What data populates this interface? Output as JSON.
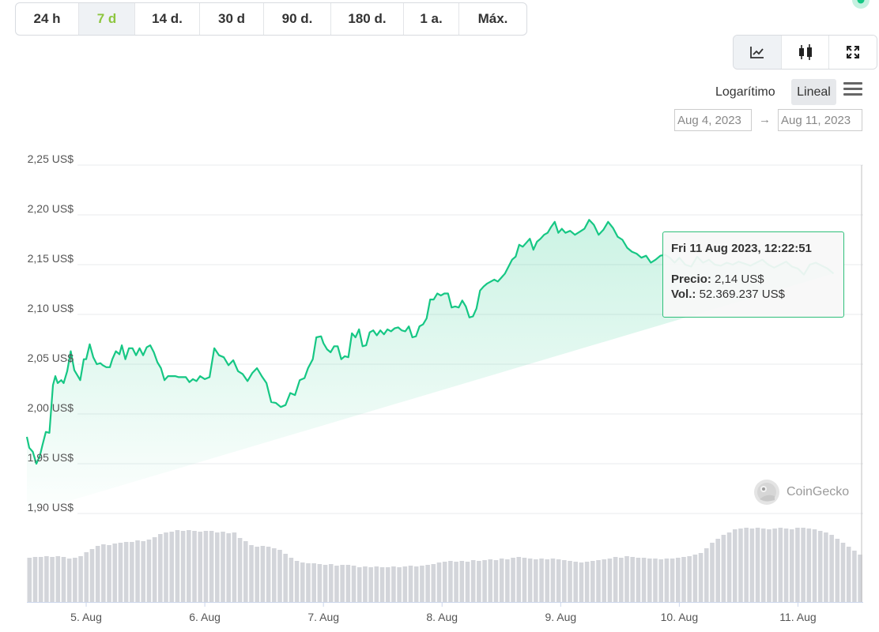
{
  "range_tabs": [
    {
      "label": "24 h",
      "active": false
    },
    {
      "label": "7 d",
      "active": true
    },
    {
      "label": "14 d.",
      "active": false
    },
    {
      "label": "30 d",
      "active": false
    },
    {
      "label": "90 d.",
      "active": false
    },
    {
      "label": "180 d.",
      "active": false
    },
    {
      "label": "1 a.",
      "active": false
    },
    {
      "label": "Máx.",
      "active": false
    }
  ],
  "view_buttons": [
    {
      "icon": "line-chart-icon",
      "active": true
    },
    {
      "icon": "candlestick-icon",
      "active": false
    },
    {
      "icon": "fullscreen-icon",
      "active": false
    }
  ],
  "scale": {
    "log_label": "Logarítimo",
    "linear_label": "Lineal",
    "active": "Lineal"
  },
  "date_range": {
    "from": "Aug 4, 2023",
    "to": "Aug 11, 2023",
    "arrow": "→"
  },
  "tooltip": {
    "title": "Fri 11 Aug 2023, 12:22:51",
    "price_label": "Precio:",
    "price_value": "2,14 US$",
    "volume_label": "Vol.:",
    "volume_value": "52.369.237 US$"
  },
  "watermark": "CoinGecko",
  "colors": {
    "accent": "#8dc63f",
    "line": "#16c784",
    "volume_bar": "#d3d5da",
    "tooltip_border": "#2fbf7a"
  },
  "chart_data": {
    "type": "area",
    "ylim": [
      1.9,
      2.25
    ],
    "y_ticks": [
      "2,25 US$",
      "2,20 US$",
      "2,15 US$",
      "2,10 US$",
      "2,05 US$",
      "2,00 US$",
      "1,95 US$",
      "1,90 US$"
    ],
    "y_tick_values": [
      2.25,
      2.2,
      2.15,
      2.1,
      2.05,
      2.0,
      1.95,
      1.9
    ],
    "x_labels": [
      "5. Aug",
      "6. Aug",
      "7. Aug",
      "8. Aug",
      "9. Aug",
      "10. Aug",
      "11. Aug"
    ],
    "x_label_days": [
      1,
      2,
      3,
      4,
      5,
      6,
      7
    ],
    "xlim_days": [
      0.5,
      7.55
    ],
    "price_series": {
      "day": [
        0.5,
        0.52,
        0.55,
        0.58,
        0.61,
        0.63,
        0.66,
        0.69,
        0.72,
        0.74,
        0.76,
        0.79,
        0.81,
        0.84,
        0.87,
        0.9,
        0.93,
        0.95,
        0.98,
        1.0,
        1.03,
        1.06,
        1.09,
        1.12,
        1.14,
        1.17,
        1.2,
        1.22,
        1.25,
        1.28,
        1.3,
        1.33,
        1.36,
        1.39,
        1.42,
        1.45,
        1.48,
        1.51,
        1.54,
        1.57,
        1.6,
        1.63,
        1.66,
        1.69,
        1.72,
        1.75,
        1.78,
        1.81,
        1.84,
        1.87,
        1.9,
        1.93,
        1.96,
        2.0,
        2.04,
        2.08,
        2.12,
        2.16,
        2.2,
        2.24,
        2.28,
        2.32,
        2.36,
        2.4,
        2.44,
        2.48,
        2.52,
        2.56,
        2.6,
        2.64,
        2.68,
        2.72,
        2.76,
        2.8,
        2.84,
        2.87,
        2.91,
        2.94,
        2.98,
        3.0,
        3.03,
        3.06,
        3.09,
        3.12,
        3.15,
        3.18,
        3.21,
        3.24,
        3.27,
        3.3,
        3.33,
        3.36,
        3.39,
        3.42,
        3.45,
        3.48,
        3.51,
        3.54,
        3.57,
        3.6,
        3.63,
        3.66,
        3.69,
        3.72,
        3.75,
        3.78,
        3.81,
        3.84,
        3.87,
        3.9,
        3.93,
        3.96,
        3.99,
        4.02,
        4.05,
        4.08,
        4.11,
        4.14,
        4.17,
        4.2,
        4.23,
        4.26,
        4.29,
        4.32,
        4.35,
        4.38,
        4.41,
        4.44,
        4.47,
        4.5,
        4.53,
        4.56,
        4.59,
        4.62,
        4.65,
        4.68,
        4.71,
        4.74,
        4.77,
        4.8,
        4.83,
        4.86,
        4.89,
        4.92,
        4.95,
        4.98,
        5.01,
        5.04,
        5.08,
        5.12,
        5.16,
        5.2,
        5.24,
        5.28,
        5.32,
        5.36,
        5.4,
        5.44,
        5.48,
        5.52,
        5.56,
        5.6,
        5.64,
        5.68,
        5.72,
        5.76,
        5.8,
        5.84,
        5.88,
        5.92,
        5.96,
        6.0,
        6.05,
        6.1,
        6.15,
        6.2,
        6.25,
        6.3,
        6.35,
        6.4,
        6.45,
        6.5,
        6.55,
        6.6,
        6.65,
        6.7,
        6.75,
        6.8,
        6.85,
        6.9,
        6.95,
        7.0,
        7.05,
        7.1,
        7.15,
        7.2,
        7.25,
        7.3,
        7.35,
        7.4,
        7.45,
        7.5
      ],
      "price": [
        1.977,
        1.966,
        1.962,
        1.95,
        1.958,
        1.968,
        1.982,
        1.981,
        2.029,
        2.038,
        2.031,
        2.034,
        2.031,
        2.043,
        2.063,
        2.044,
        2.038,
        2.034,
        2.055,
        2.055,
        2.07,
        2.057,
        2.05,
        2.051,
        2.049,
        2.047,
        2.047,
        2.055,
        2.063,
        2.06,
        2.069,
        2.055,
        2.066,
        2.066,
        2.059,
        2.066,
        2.059,
        2.067,
        2.069,
        2.062,
        2.052,
        2.046,
        2.034,
        2.038,
        2.038,
        2.038,
        2.037,
        2.037,
        2.037,
        2.032,
        2.035,
        2.033,
        2.038,
        2.035,
        2.037,
        2.066,
        2.059,
        2.057,
        2.049,
        2.054,
        2.043,
        2.04,
        2.033,
        2.041,
        2.046,
        2.038,
        2.031,
        2.012,
        2.011,
        2.007,
        2.009,
        2.021,
        2.019,
        2.034,
        2.036,
        2.046,
        2.055,
        2.077,
        2.078,
        2.071,
        2.065,
        2.062,
        2.068,
        2.068,
        2.055,
        2.058,
        2.057,
        2.081,
        2.077,
        2.085,
        2.068,
        2.069,
        2.082,
        2.084,
        2.079,
        2.084,
        2.08,
        2.085,
        2.083,
        2.086,
        2.087,
        2.084,
        2.083,
        2.088,
        2.077,
        2.078,
        2.088,
        2.09,
        2.096,
        2.115,
        2.115,
        2.121,
        2.119,
        2.121,
        2.121,
        2.107,
        2.108,
        2.107,
        2.114,
        2.108,
        2.097,
        2.098,
        2.106,
        2.124,
        2.128,
        2.131,
        2.133,
        2.135,
        2.133,
        2.137,
        2.141,
        2.148,
        2.155,
        2.158,
        2.17,
        2.168,
        2.172,
        2.176,
        2.165,
        2.173,
        2.176,
        2.18,
        2.182,
        2.188,
        2.193,
        2.182,
        2.186,
        2.182,
        2.184,
        2.18,
        2.183,
        2.186,
        2.195,
        2.19,
        2.18,
        2.185,
        2.193,
        2.187,
        2.178,
        2.175,
        2.167,
        2.163,
        2.161,
        2.157,
        2.159,
        2.152,
        2.155,
        2.159,
        2.16,
        2.157,
        2.152,
        2.157,
        2.15,
        2.148,
        2.158,
        2.152,
        2.155,
        2.15,
        2.149,
        2.152,
        2.15,
        2.153,
        2.151,
        2.149,
        2.152,
        2.155,
        2.15,
        2.147,
        2.15,
        2.153,
        2.148,
        2.146,
        2.14,
        2.15,
        2.152,
        2.149,
        2.146,
        2.141
      ]
    },
    "volume_bars_relative": [
      0.56,
      0.57,
      0.57,
      0.58,
      0.57,
      0.58,
      0.57,
      0.55,
      0.56,
      0.58,
      0.63,
      0.67,
      0.71,
      0.73,
      0.72,
      0.74,
      0.75,
      0.76,
      0.76,
      0.78,
      0.77,
      0.79,
      0.82,
      0.86,
      0.88,
      0.89,
      0.91,
      0.9,
      0.91,
      0.9,
      0.89,
      0.9,
      0.9,
      0.88,
      0.89,
      0.87,
      0.88,
      0.81,
      0.77,
      0.72,
      0.7,
      0.71,
      0.7,
      0.68,
      0.66,
      0.61,
      0.56,
      0.52,
      0.5,
      0.49,
      0.49,
      0.48,
      0.47,
      0.48,
      0.46,
      0.47,
      0.47,
      0.46,
      0.44,
      0.45,
      0.44,
      0.45,
      0.44,
      0.44,
      0.45,
      0.44,
      0.45,
      0.46,
      0.45,
      0.46,
      0.47,
      0.48,
      0.5,
      0.51,
      0.52,
      0.51,
      0.52,
      0.51,
      0.53,
      0.52,
      0.53,
      0.54,
      0.53,
      0.55,
      0.54,
      0.56,
      0.57,
      0.56,
      0.55,
      0.54,
      0.55,
      0.54,
      0.55,
      0.54,
      0.53,
      0.52,
      0.51,
      0.5,
      0.51,
      0.52,
      0.53,
      0.54,
      0.55,
      0.57,
      0.56,
      0.58,
      0.57,
      0.56,
      0.56,
      0.55,
      0.55,
      0.54,
      0.55,
      0.55,
      0.56,
      0.57,
      0.58,
      0.6,
      0.62,
      0.68,
      0.75,
      0.8,
      0.85,
      0.88,
      0.92,
      0.93,
      0.94,
      0.93,
      0.94,
      0.93,
      0.92,
      0.93,
      0.94,
      0.93,
      0.92,
      0.94,
      0.94,
      0.93,
      0.92,
      0.9,
      0.88,
      0.85,
      0.8,
      0.75,
      0.7,
      0.65,
      0.6
    ]
  }
}
